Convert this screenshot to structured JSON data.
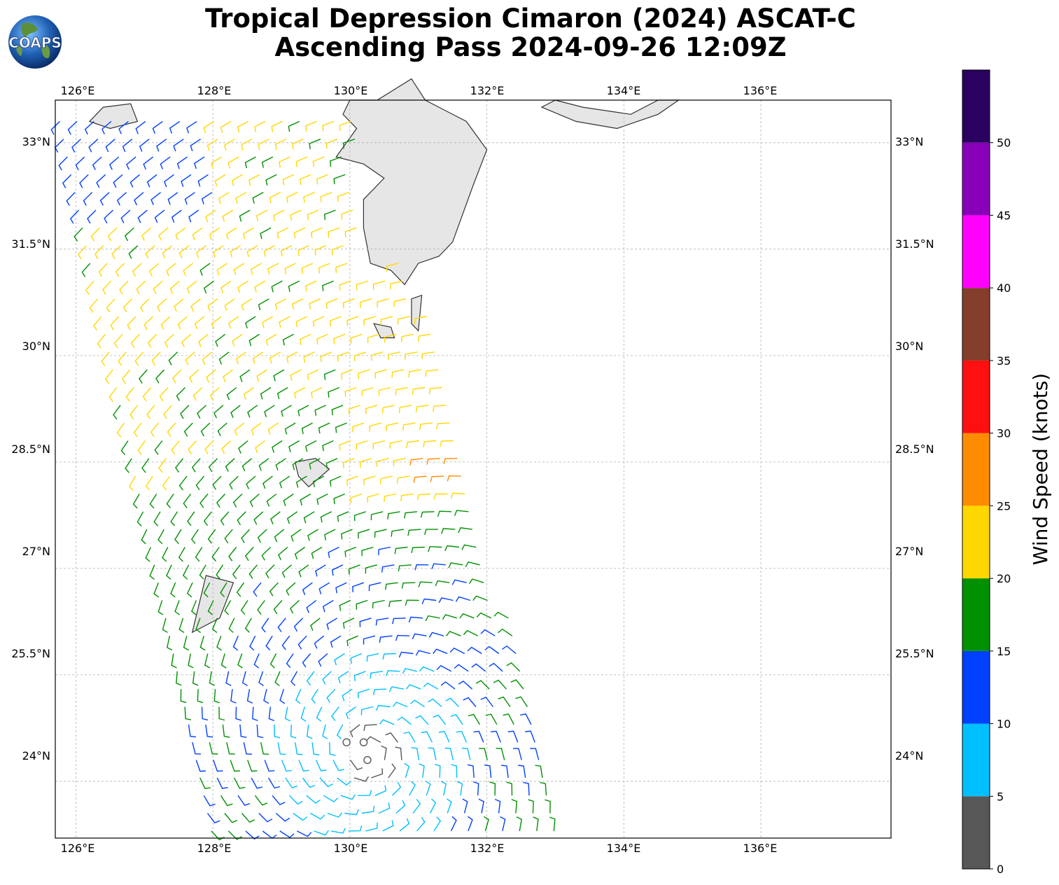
{
  "title": {
    "line1": "Tropical Depression Cimaron (2024) ASCAT-C",
    "line2": "Ascending Pass 2024-09-26 12:09Z"
  },
  "logo": {
    "text": "COAPS"
  },
  "map": {
    "lon_ticks": [
      "126°E",
      "128°E",
      "130°E",
      "132°E",
      "134°E",
      "136°E"
    ],
    "lat_ticks": [
      "33°N",
      "31.5°N",
      "30°N",
      "28.5°N",
      "27°N",
      "25.5°N",
      "24°N"
    ],
    "lon_range": [
      125.7,
      137.9
    ],
    "lat_range": [
      23.2,
      33.6
    ],
    "grid": true
  },
  "colorbar": {
    "label": "Wind Speed (knots)",
    "ticks": [
      "0",
      "5",
      "10",
      "15",
      "20",
      "25",
      "30",
      "35",
      "40",
      "45",
      "50"
    ],
    "bins": [
      {
        "min": 0,
        "max": 5,
        "color": "#575757"
      },
      {
        "min": 5,
        "max": 10,
        "color": "#00bfff"
      },
      {
        "min": 10,
        "max": 15,
        "color": "#0040ff"
      },
      {
        "min": 15,
        "max": 20,
        "color": "#009000"
      },
      {
        "min": 20,
        "max": 25,
        "color": "#ffd700"
      },
      {
        "min": 25,
        "max": 30,
        "color": "#ff8c00"
      },
      {
        "min": 30,
        "max": 35,
        "color": "#ff1010"
      },
      {
        "min": 35,
        "max": 40,
        "color": "#843e2b"
      },
      {
        "min": 40,
        "max": 45,
        "color": "#ff00ff"
      },
      {
        "min": 45,
        "max": 50,
        "color": "#8800b8"
      },
      {
        "min": 50,
        "max": 55,
        "color": "#2a0060"
      }
    ]
  },
  "colors": {
    "land": "#e6e6e6",
    "coast": "#333333",
    "gridline": "#b0b0b0"
  }
}
